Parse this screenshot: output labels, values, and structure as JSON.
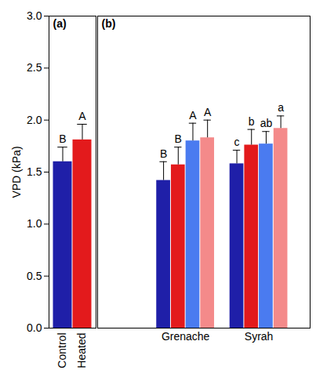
{
  "chart_data": [
    {
      "type": "bar",
      "title": "(a)",
      "categories": [
        "Control",
        "Heated"
      ],
      "values": [
        1.6,
        1.81
      ],
      "errors": [
        0.14,
        0.15
      ],
      "letters": [
        "B",
        "A"
      ],
      "colors": [
        "#1f1fa8",
        "#e31a1c"
      ],
      "ylabel": "VPD (kPa)",
      "ylim": [
        0,
        3
      ],
      "yticks": [
        {
          "value": 0,
          "label": "0.0"
        },
        0.5,
        {
          "value": 1,
          "label": "1.0"
        },
        1.5,
        {
          "value": 2,
          "label": "2.0"
        },
        2.5,
        {
          "value": 3,
          "label": "3.0"
        }
      ]
    },
    {
      "type": "bar",
      "title": "(b)",
      "categories": [
        "Grenache",
        "Syrah"
      ],
      "series": [
        {
          "color": "#1f1fa8",
          "values": [
            1.42,
            1.58
          ],
          "errors": [
            0.18,
            0.13
          ],
          "letters": [
            "B",
            "c"
          ]
        },
        {
          "color": "#e31a1c",
          "values": [
            1.57,
            1.76
          ],
          "errors": [
            0.17,
            0.15
          ],
          "letters": [
            "B",
            "b"
          ]
        },
        {
          "color": "#4a7bf0",
          "values": [
            1.8,
            1.77
          ],
          "errors": [
            0.17,
            0.12
          ],
          "letters": [
            "A",
            "ab"
          ]
        },
        {
          "color": "#f48a8a",
          "values": [
            1.83,
            1.92
          ],
          "errors": [
            0.17,
            0.12
          ],
          "letters": [
            "A",
            "a"
          ]
        }
      ],
      "ylim": [
        0,
        3
      ],
      "tick_labels": "x"
    }
  ]
}
